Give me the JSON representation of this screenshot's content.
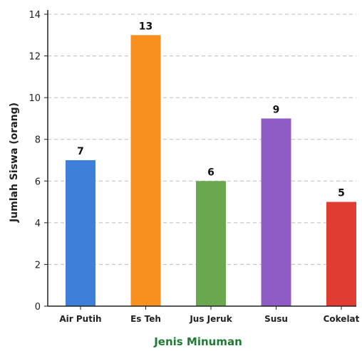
{
  "chart_data": {
    "type": "bar",
    "categories": [
      "Air Putih",
      "Es Teh",
      "Jus Jeruk",
      "Susu",
      "Cokelat"
    ],
    "values": [
      7,
      13,
      6,
      9,
      5
    ],
    "data_labels": [
      "7",
      "13",
      "6",
      "9",
      "5"
    ],
    "bar_colors": [
      "#3d7fd9",
      "#f7901e",
      "#6aa84f",
      "#8e5cc4",
      "#e03c31"
    ],
    "title": "",
    "xlabel": "Jenis Minuman",
    "ylabel": "Jumlah Siswa (orang)",
    "ylim": [
      0,
      14
    ],
    "yticks": [
      0,
      2,
      4,
      6,
      8,
      10,
      12,
      14
    ],
    "grid": true,
    "legend": false
  },
  "colors": {
    "xlabel": "#1e7b34",
    "axis": "#222222",
    "grid": "#bbbbbb"
  }
}
